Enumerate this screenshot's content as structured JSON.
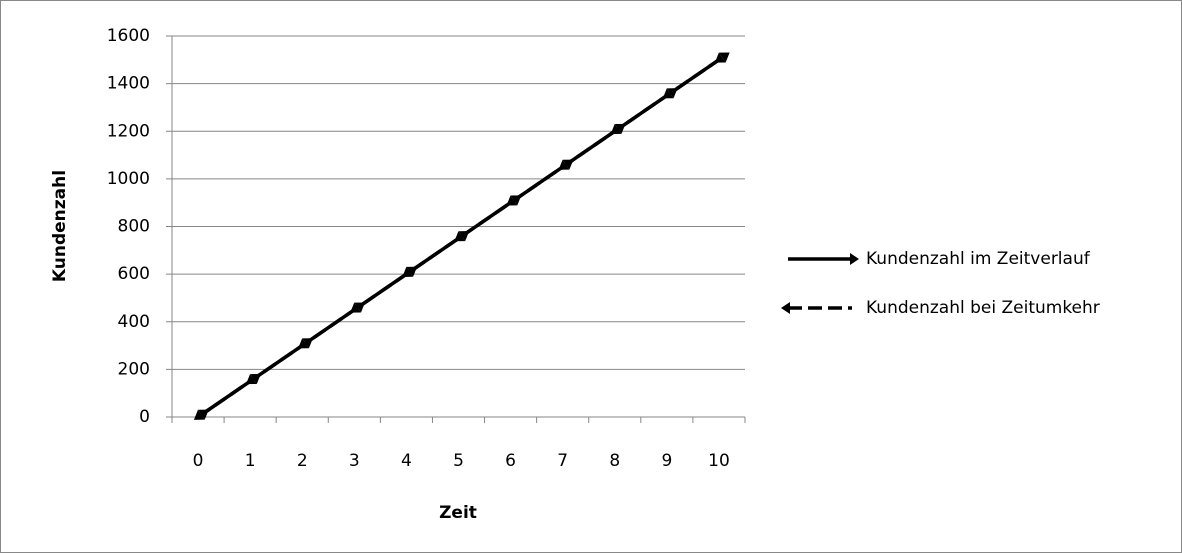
{
  "chart_data": {
    "type": "line",
    "x_label": "Zeit",
    "y_label": "Kundenzahl",
    "categories": [
      "0",
      "1",
      "2",
      "3",
      "4",
      "5",
      "6",
      "7",
      "8",
      "9",
      "10"
    ],
    "series": [
      {
        "name": "Kundenzahl im Zeitverlauf",
        "color": "#000000",
        "dash": "solid",
        "arrow": "forward",
        "values": [
          0,
          150,
          300,
          450,
          600,
          750,
          900,
          1050,
          1200,
          1350,
          1500
        ]
      },
      {
        "name": "Kundenzahl bei Zeitumkehr",
        "color": "#000000",
        "dash": "dashed",
        "arrow": "backward",
        "values": [
          0,
          150,
          300,
          450,
          600,
          750,
          900,
          1050,
          1200,
          1350,
          1500
        ]
      }
    ],
    "ylim": [
      0,
      1600
    ],
    "yticks": [
      0,
      200,
      400,
      600,
      800,
      1000,
      1200,
      1400,
      1600
    ],
    "grid": true,
    "legend": "right"
  }
}
